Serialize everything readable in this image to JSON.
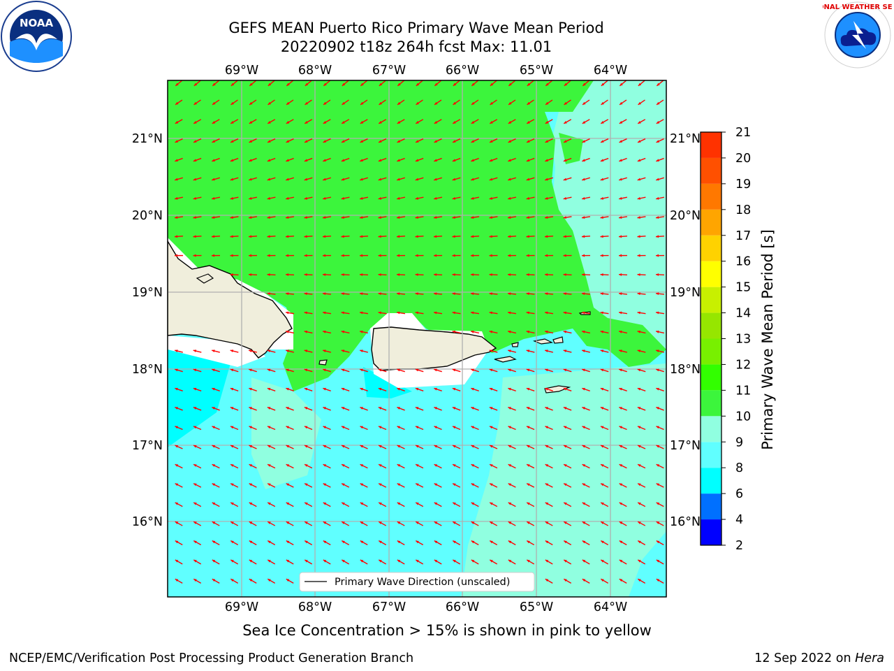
{
  "header": {
    "title_line1": "GEFS MEAN Puerto Rico Primary Wave Mean Period",
    "title_line2": "20220902 t18z 264h fcst   Max: 11.01"
  },
  "logos": {
    "left": {
      "icon": "noaa-logo",
      "text": "NOAA"
    },
    "right": {
      "icon": "nws-logo",
      "text": "NATIONAL WEATHER SERVICE"
    }
  },
  "map": {
    "lon_labels": [
      "69°W",
      "68°W",
      "67°W",
      "66°W",
      "65°W",
      "64°W"
    ],
    "lat_labels": [
      "21°N",
      "20°N",
      "19°N",
      "18°N",
      "17°N",
      "16°N"
    ],
    "legend_label": "Primary Wave Direction (unscaled)",
    "arrow_color": "#ff0000",
    "land_color": "#f0eedc"
  },
  "colorbar": {
    "label": "Primary Wave Mean Period [s]",
    "ticks": [
      "2",
      "4",
      "6",
      "8",
      "9",
      "10",
      "11",
      "12",
      "13",
      "14",
      "15",
      "16",
      "17",
      "18",
      "19",
      "20",
      "21"
    ],
    "colors": [
      "#0000ff",
      "#0070ff",
      "#00ffff",
      "#60ffff",
      "#90ffe0",
      "#3cf53c",
      "#32ff00",
      "#78f000",
      "#96e600",
      "#c8f000",
      "#ffff00",
      "#ffd200",
      "#ffa500",
      "#ff7800",
      "#ff5000",
      "#ff3200",
      "#ff0000"
    ]
  },
  "footer": {
    "note": "Sea Ice Concentration > 15% is shown in pink to yellow",
    "left": "NCEP/EMC/Verification Post Processing Product Generation Branch",
    "right_date": "12 Sep 2022 on",
    "right_host": "Hera"
  }
}
